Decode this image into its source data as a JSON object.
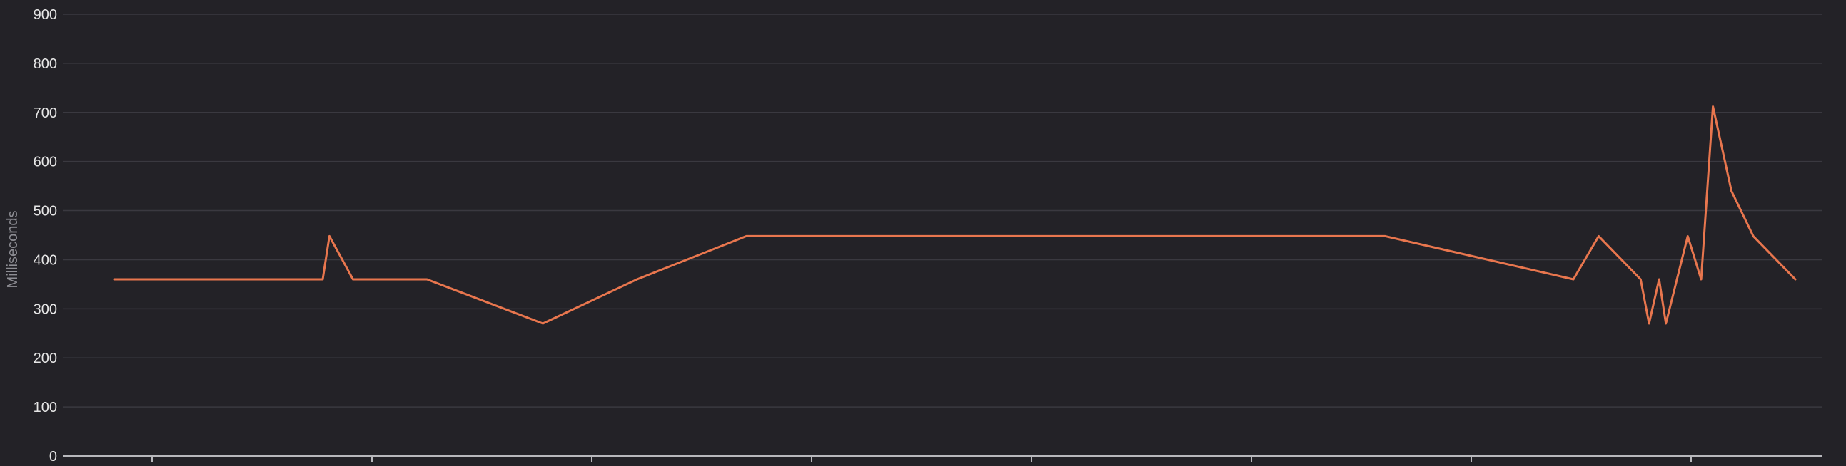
{
  "chart_data": {
    "type": "line",
    "title": "",
    "xlabel": "",
    "ylabel": "Milliseconds",
    "ylim": [
      0,
      900
    ],
    "yticks": [
      0,
      100,
      200,
      300,
      400,
      500,
      600,
      700,
      800,
      900
    ],
    "grid": true,
    "x_tick_labels_visible": false,
    "x_tick_count": 8,
    "series": [
      {
        "color": "#e8764e",
        "x": [
          0.0,
          12.4,
          12.8,
          14.2,
          18.6,
          25.5,
          31.1,
          37.6,
          75.6,
          86.8,
          88.3,
          90.8,
          91.3,
          91.9,
          92.3,
          93.6,
          94.4,
          95.1,
          96.2,
          97.5,
          100.0
        ],
        "values": [
          360,
          360,
          448,
          360,
          360,
          270,
          360,
          448,
          448,
          360,
          448,
          360,
          270,
          360,
          270,
          448,
          360,
          712,
          540,
          448,
          360
        ]
      }
    ]
  }
}
